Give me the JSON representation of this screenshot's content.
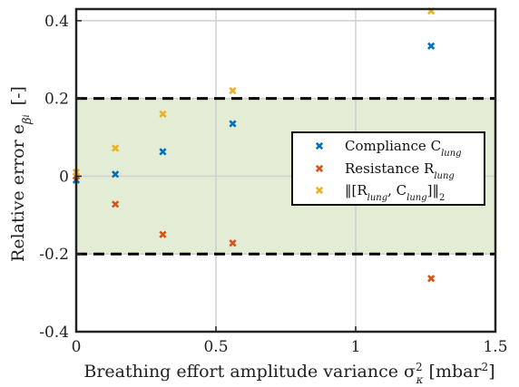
{
  "chart_data": {
    "type": "scatter",
    "xlabel": "Breathing effort amplitude variance σ²κ [mbar²]",
    "xlabel_parts": {
      "main": "Breathing effort amplitude variance σ",
      "sup": "2",
      "sub": "κ",
      "unit": " [mbar",
      "unit_sup": "2",
      "unit_end": "]"
    },
    "ylabel": "Relative error eβi [-]",
    "ylabel_parts": {
      "main": "Relative error e",
      "sub": "β",
      "subsub": "i",
      "unit": "[-]"
    },
    "xlim": [
      0,
      1.5
    ],
    "ylim": [
      -0.4,
      0.43
    ],
    "xticks": [
      0,
      0.5,
      1,
      1.5
    ],
    "xtick_labels": [
      "0",
      "0.5",
      "1",
      "1.5"
    ],
    "yticks": [
      -0.4,
      -0.2,
      0,
      0.2,
      0.4
    ],
    "ytick_labels": [
      "-0.4",
      "-0.2",
      "0",
      "0.2",
      "0.4"
    ],
    "grid": true,
    "band": {
      "y_min": -0.2,
      "y_max": 0.2,
      "color": "#e3ecd4"
    },
    "threshold_lines": [
      0.2,
      -0.2
    ],
    "legend_position": "center-right",
    "series": [
      {
        "name": "Compliance C_lung",
        "legend_parts": {
          "main": "Compliance C",
          "sub": "lung"
        },
        "color": "#0072bd",
        "points": [
          [
            0,
            -0.01
          ],
          [
            0.14,
            0.005
          ],
          [
            0.31,
            0.063
          ],
          [
            0.56,
            0.135
          ],
          [
            1.27,
            0.335
          ]
        ]
      },
      {
        "name": "Resistance R_lung",
        "legend_parts": {
          "main": "Resistance R",
          "sub": "lung"
        },
        "color": "#d95319",
        "points": [
          [
            0,
            0.0
          ],
          [
            0.14,
            -0.072
          ],
          [
            0.31,
            -0.15
          ],
          [
            0.56,
            -0.172
          ],
          [
            1.27,
            -0.263
          ]
        ]
      },
      {
        "name": "||[R_lung, C_lung]||_2",
        "legend_parts": {
          "a": "‖[R",
          "b": "lung",
          "c": ", C",
          "d": "lung",
          "e": "]‖",
          "f": "2"
        },
        "color": "#edb120",
        "points": [
          [
            0,
            0.01
          ],
          [
            0.14,
            0.072
          ],
          [
            0.31,
            0.16
          ],
          [
            0.56,
            0.22
          ],
          [
            1.27,
            0.425
          ]
        ]
      }
    ]
  }
}
